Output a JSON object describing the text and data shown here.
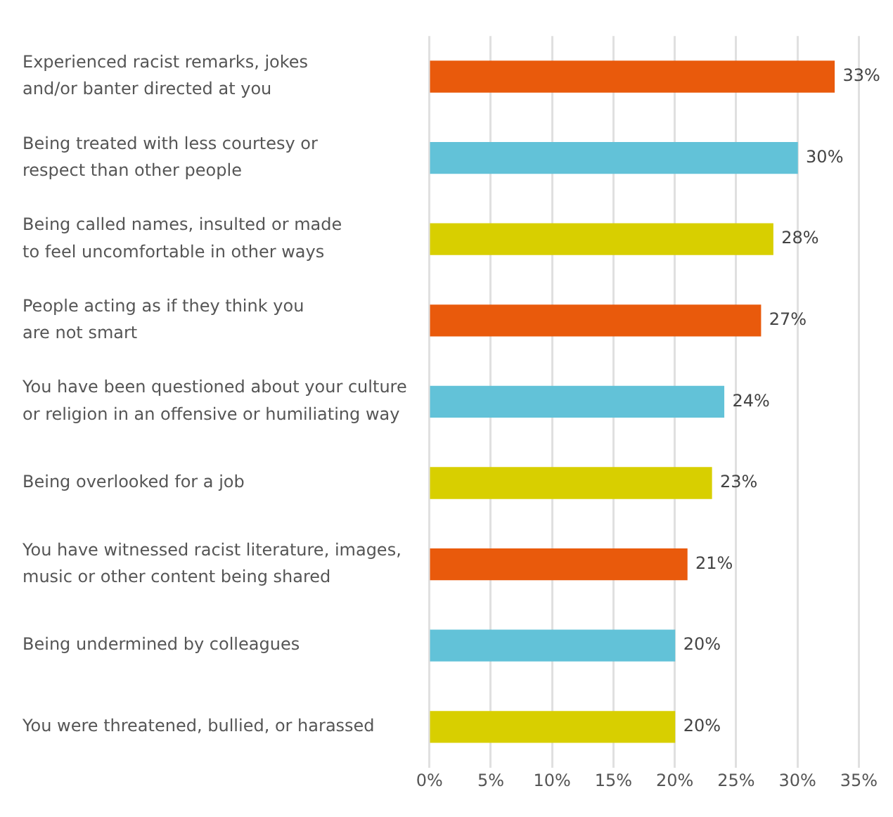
{
  "chart_data": {
    "type": "bar",
    "orientation": "horizontal",
    "categories": [
      "Experienced racist remarks, jokes\nand/or banter directed at you",
      "Being treated with less courtesy or\nrespect than other people",
      "Being called names, insulted or made\nto feel uncomfortable in other ways",
      "People acting as if they think you\nare not smart",
      "You have been questioned about your culture\nor religion in an offensive or humiliating way",
      "Being overlooked for a job",
      "You have witnessed racist literature, images,\nmusic or other content being shared",
      "Being undermined by colleagues",
      "You were threatened, bullied, or harassed"
    ],
    "values": [
      33,
      30,
      28,
      27,
      24,
      23,
      21,
      20,
      20
    ],
    "colors": [
      "#e95a0c",
      "#62c2d8",
      "#d8cf00",
      "#e95a0c",
      "#62c2d8",
      "#d8cf00",
      "#e95a0c",
      "#62c2d8",
      "#d8cf00"
    ],
    "value_labels": [
      "33%",
      "30%",
      "28%",
      "27%",
      "24%",
      "23%",
      "21%",
      "20%",
      "20%"
    ],
    "xlim": [
      0,
      35
    ],
    "xticks": [
      {
        "value": 0,
        "label": "0%"
      },
      {
        "value": 5,
        "label": "5%"
      },
      {
        "value": 10,
        "label": "10%"
      },
      {
        "value": 15,
        "label": "15%"
      },
      {
        "value": 20,
        "label": "20%"
      },
      {
        "value": 25,
        "label": "25%"
      },
      {
        "value": 30,
        "label": "30%"
      },
      {
        "value": 35,
        "label": "35%"
      }
    ],
    "grid": "x",
    "legend": false
  }
}
